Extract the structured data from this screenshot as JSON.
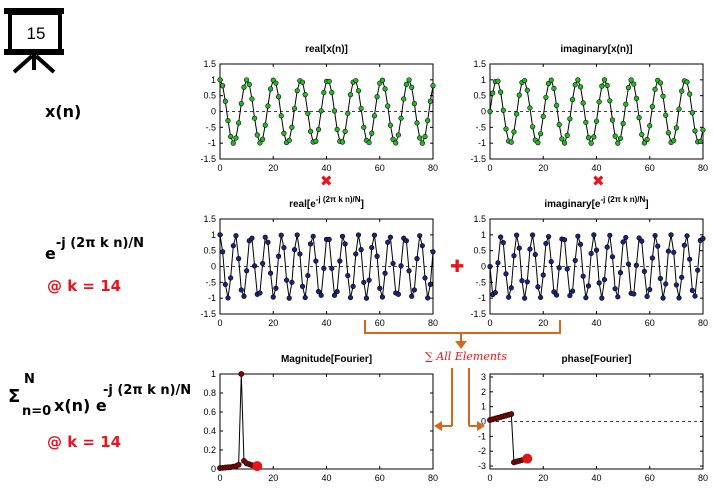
{
  "slide_number": "15",
  "row_labels": {
    "signal": "x(n)",
    "kernel_base": "e",
    "kernel_exp": "-j (2π k n)/N",
    "k_value_1": "@ k = 14",
    "sum_symbol": "Σ",
    "sum_upper": "N",
    "sum_lower": "n=0",
    "sum_term": "x(n) e",
    "sum_exp": "-j (2π k n)/N",
    "k_value_2": "@ k = 14"
  },
  "operators": {
    "multiply": "✖",
    "add": "✚",
    "sum_note": "∑ All Elements"
  },
  "colors": {
    "green_marker": "#22bb22",
    "blue_marker": "#1a237e",
    "red_marker": "#e8141c",
    "dark_red_marker": "#8b0000",
    "orange_arrow": "#d2691e"
  },
  "chart_data": [
    {
      "type": "line",
      "title": "real[x(n)]",
      "title_sup": "",
      "title_tail": "",
      "x": {
        "start": 0,
        "end": 80,
        "step": 1
      },
      "formula": "cos(2*pi*8*n/81)",
      "xlim": [
        0,
        80
      ],
      "ylim": [
        -1.5,
        1.5
      ],
      "xticks": [
        0,
        20,
        40,
        60,
        80
      ],
      "yticks": [
        1.5,
        1,
        0.5,
        0,
        -0.5,
        -1,
        -1.5
      ],
      "marker_color": "#22bb22",
      "zero_line": "dashed",
      "grid": false
    },
    {
      "type": "line",
      "title": "imaginary[x(n)]",
      "title_sup": "",
      "title_tail": "",
      "x": {
        "start": 0,
        "end": 80,
        "step": 1
      },
      "formula": "sin(2*pi*8*n/81)",
      "xlim": [
        0,
        80
      ],
      "ylim": [
        -1.5,
        1.5
      ],
      "xticks": [
        0,
        20,
        40,
        60,
        80
      ],
      "yticks": [
        1.5,
        1,
        0.5,
        0,
        -0.5,
        -1,
        -1.5
      ],
      "marker_color": "#22bb22",
      "zero_line": "dashed",
      "grid": false
    },
    {
      "type": "line",
      "title": "real[e",
      "title_sup": "-j (2π k n)/N",
      "title_tail": "]",
      "x": {
        "start": 0,
        "end": 80,
        "step": 1
      },
      "formula": "cos(2*pi*14*n/81)",
      "xlim": [
        0,
        80
      ],
      "ylim": [
        -1.5,
        1.5
      ],
      "xticks": [
        0,
        20,
        40,
        60,
        80
      ],
      "yticks": [
        1.5,
        1,
        0.5,
        0,
        -0.5,
        -1,
        -1.5
      ],
      "marker_color": "#1a237e",
      "zero_line": "dashed",
      "grid": false
    },
    {
      "type": "line",
      "title": "imaginary[e",
      "title_sup": "-j (2π k n)/N",
      "title_tail": "]",
      "x": {
        "start": 0,
        "end": 80,
        "step": 1
      },
      "formula": "-sin(2*pi*14*n/81)",
      "xlim": [
        0,
        80
      ],
      "ylim": [
        -1.5,
        1.5
      ],
      "xticks": [
        0,
        20,
        40,
        60,
        80
      ],
      "yticks": [
        1.5,
        1,
        0.5,
        0,
        -0.5,
        -1,
        -1.5
      ],
      "marker_color": "#1a237e",
      "zero_line": "dashed",
      "grid": false
    },
    {
      "type": "line",
      "title": "Magnitude[Fourier]",
      "title_sup": "",
      "title_tail": "",
      "x": [
        0,
        1,
        2,
        3,
        4,
        5,
        6,
        7,
        8,
        9,
        10,
        11,
        12,
        13,
        14
      ],
      "values": [
        0.01,
        0.012,
        0.015,
        0.018,
        0.02,
        0.025,
        0.03,
        0.045,
        1.0,
        0.085,
        0.06,
        0.05,
        0.04,
        0.035,
        0.03
      ],
      "highlight": {
        "x": 14,
        "y": 0.03
      },
      "xlim": [
        0,
        80
      ],
      "ylim": [
        0,
        1
      ],
      "xticks": [
        0,
        20,
        40,
        60,
        80
      ],
      "yticks": [
        1,
        0.8,
        0.6,
        0.4,
        0.2,
        0
      ],
      "marker_color": "#8b0000",
      "highlight_color": "#e8141c",
      "zero_line": "dashed",
      "grid": false
    },
    {
      "type": "line",
      "title": "phase[Fourier]",
      "title_sup": "",
      "title_tail": "",
      "x": [
        0,
        1,
        2,
        3,
        4,
        5,
        6,
        7,
        8,
        9,
        10,
        11,
        12,
        13,
        14
      ],
      "values": [
        0.1,
        0.15,
        0.2,
        0.25,
        0.3,
        0.35,
        0.4,
        0.45,
        0.5,
        -2.75,
        -2.7,
        -2.65,
        -2.6,
        -2.55,
        -2.5
      ],
      "highlight": {
        "x": 14,
        "y": -2.5
      },
      "xlim": [
        0,
        80
      ],
      "ylim": [
        -3.2,
        3.2
      ],
      "xticks": [
        0,
        20,
        40,
        60,
        80
      ],
      "yticks": [
        3,
        2,
        1,
        0,
        -1,
        -2,
        -3
      ],
      "marker_color": "#8b0000",
      "highlight_color": "#e8141c",
      "zero_line": "dashed",
      "grid": false
    }
  ]
}
